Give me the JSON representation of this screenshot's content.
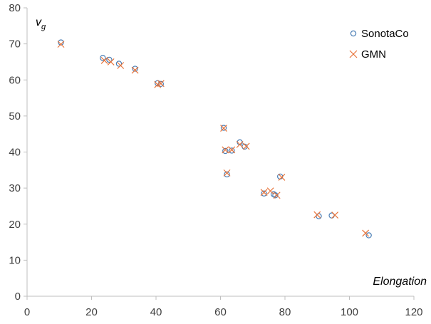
{
  "chart_data": {
    "type": "scatter",
    "xlabel": "Elongation",
    "ylabel_main": "v",
    "ylabel_sub": "g",
    "xlim": [
      0,
      120
    ],
    "ylim": [
      0,
      80
    ],
    "xticks": [
      0,
      20,
      40,
      60,
      80,
      100,
      120
    ],
    "yticks": [
      0,
      10,
      20,
      30,
      40,
      50,
      60,
      70,
      80
    ],
    "grid": false,
    "legend_position": "top-right",
    "series": [
      {
        "name": "SonotaCo",
        "marker": "circle",
        "color": "#4a7eb5",
        "points": [
          [
            10.5,
            70.4
          ],
          [
            23.5,
            66.1
          ],
          [
            25.5,
            65.6
          ],
          [
            28.5,
            64.5
          ],
          [
            33.5,
            63.1
          ],
          [
            40.5,
            59.1
          ],
          [
            41.5,
            58.9
          ],
          [
            61.0,
            46.7
          ],
          [
            61.5,
            40.3
          ],
          [
            62.0,
            33.8
          ],
          [
            63.5,
            40.4
          ],
          [
            66.0,
            42.7
          ],
          [
            67.5,
            41.5
          ],
          [
            73.5,
            28.5
          ],
          [
            76.5,
            28.3
          ],
          [
            77.0,
            28.0
          ],
          [
            78.5,
            33.2
          ],
          [
            90.5,
            22.2
          ],
          [
            94.5,
            22.4
          ],
          [
            106.0,
            16.9
          ]
        ]
      },
      {
        "name": "GMN",
        "marker": "x",
        "color": "#e8743b",
        "points": [
          [
            10.5,
            69.9
          ],
          [
            24.0,
            65.4
          ],
          [
            26.0,
            65.0
          ],
          [
            29.0,
            64.0
          ],
          [
            33.5,
            62.7
          ],
          [
            40.5,
            58.7
          ],
          [
            41.5,
            59.0
          ],
          [
            61.0,
            46.6
          ],
          [
            61.5,
            40.6
          ],
          [
            62.0,
            34.2
          ],
          [
            63.5,
            40.6
          ],
          [
            66.0,
            42.1
          ],
          [
            68.0,
            41.6
          ],
          [
            73.5,
            28.8
          ],
          [
            75.5,
            29.2
          ],
          [
            77.5,
            28.0
          ],
          [
            79.0,
            33.0
          ],
          [
            90.0,
            22.6
          ],
          [
            95.5,
            22.5
          ],
          [
            105.0,
            17.5
          ]
        ]
      }
    ]
  }
}
